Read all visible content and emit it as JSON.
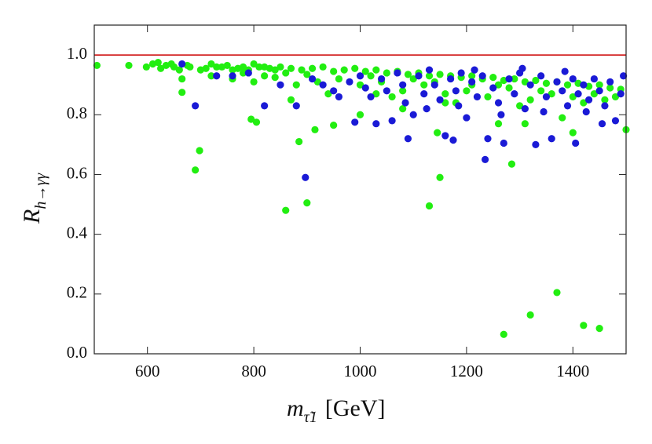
{
  "chart_data": {
    "type": "scatter",
    "xlabel": "m",
    "xlabel_sub": "τ̃1",
    "xlabel_unit": "[GeV]",
    "ylabel": "R",
    "ylabel_sub": "h→γγ",
    "xlim": [
      500,
      1500
    ],
    "ylim": [
      0,
      1.1
    ],
    "xticks": [
      600,
      800,
      1000,
      1200,
      1400
    ],
    "yticks": [
      {
        "value": 0,
        "label": "0.0"
      },
      0.2,
      0.4,
      0.6,
      0.8,
      {
        "value": 1,
        "label": "1.0"
      }
    ],
    "hline": 1,
    "hline_color": "#cc0000",
    "series": [
      {
        "color": "#22ee11",
        "x": [
          505,
          565,
          598,
          610,
          620,
          635,
          645,
          660,
          665,
          665,
          680,
          690,
          698,
          700,
          720,
          740,
          760,
          780,
          795,
          805,
          800,
          820,
          840,
          860,
          870,
          885,
          900,
          915,
          950,
          1000,
          1030,
          1080,
          1130,
          1145,
          1150,
          1160,
          1210,
          1260,
          1270,
          1285,
          1310,
          1320,
          1370,
          1420,
          1450,
          1500,
          1400,
          1380,
          625,
          650,
          675,
          710,
          730,
          750,
          770,
          790,
          810,
          830,
          850,
          870,
          890,
          910,
          930,
          950,
          970,
          990,
          1010,
          1030,
          1050,
          1070,
          1090,
          1110,
          1130,
          1150,
          1170,
          1190,
          1210,
          1230,
          1250,
          1270,
          1290,
          1310,
          1330,
          1350,
          1370,
          1390,
          1410,
          1430,
          1450,
          1470,
          1490,
          720,
          760,
          800,
          840,
          880,
          920,
          960,
          1000,
          1040,
          1080,
          1120,
          1160,
          1200,
          1240,
          1280,
          1320,
          1360,
          1400,
          1440,
          1480,
          940,
          1060,
          1180,
          1300,
          1420,
          780,
          820,
          860,
          900,
          1020,
          1100,
          1140,
          1260,
          1340,
          1460
        ],
        "values": [
          0.965,
          0.965,
          0.96,
          0.97,
          0.975,
          0.965,
          0.97,
          0.95,
          0.875,
          0.92,
          0.96,
          0.615,
          0.68,
          0.95,
          0.97,
          0.96,
          0.95,
          0.96,
          0.785,
          0.775,
          0.97,
          0.96,
          0.95,
          0.48,
          0.85,
          0.71,
          0.505,
          0.75,
          0.765,
          0.8,
          0.87,
          0.82,
          0.495,
          0.74,
          0.59,
          0.84,
          0.9,
          0.77,
          0.065,
          0.635,
          0.77,
          0.13,
          0.205,
          0.095,
          0.085,
          0.75,
          0.74,
          0.79,
          0.955,
          0.96,
          0.965,
          0.955,
          0.96,
          0.965,
          0.955,
          0.95,
          0.96,
          0.955,
          0.96,
          0.955,
          0.95,
          0.955,
          0.96,
          0.945,
          0.95,
          0.955,
          0.945,
          0.95,
          0.94,
          0.945,
          0.935,
          0.94,
          0.93,
          0.935,
          0.93,
          0.925,
          0.93,
          0.92,
          0.925,
          0.915,
          0.92,
          0.91,
          0.915,
          0.905,
          0.91,
          0.9,
          0.905,
          0.895,
          0.9,
          0.89,
          0.885,
          0.93,
          0.92,
          0.91,
          0.925,
          0.9,
          0.91,
          0.92,
          0.9,
          0.91,
          0.88,
          0.9,
          0.87,
          0.88,
          0.86,
          0.89,
          0.85,
          0.87,
          0.86,
          0.87,
          0.86,
          0.87,
          0.86,
          0.84,
          0.83,
          0.84,
          0.94,
          0.93,
          0.94,
          0.935,
          0.93,
          0.92,
          0.91,
          0.9,
          0.88,
          0.85
        ]
      },
      {
        "color": "#1a1ad6",
        "x": [
          730,
          760,
          790,
          820,
          850,
          880,
          897,
          910,
          930,
          950,
          960,
          980,
          990,
          1000,
          1010,
          1020,
          1030,
          1040,
          1050,
          1060,
          1070,
          1080,
          1090,
          1100,
          1110,
          1120,
          1130,
          1140,
          1150,
          1160,
          1170,
          1175,
          1180,
          1190,
          1200,
          1210,
          1220,
          1230,
          1235,
          1240,
          1250,
          1260,
          1270,
          1280,
          1290,
          1300,
          1310,
          1320,
          1330,
          1340,
          1350,
          1360,
          1370,
          1380,
          1390,
          1400,
          1405,
          1410,
          1420,
          1430,
          1440,
          1450,
          1455,
          1460,
          1470,
          1480,
          1490,
          1495,
          665,
          690,
          1125,
          1265,
          1345,
          1425,
          1185,
          1085,
          1215,
          1305,
          1385
        ],
        "values": [
          0.93,
          0.93,
          0.94,
          0.83,
          0.9,
          0.83,
          0.59,
          0.92,
          0.9,
          0.88,
          0.86,
          0.91,
          0.775,
          0.93,
          0.89,
          0.86,
          0.77,
          0.92,
          0.88,
          0.78,
          0.94,
          0.9,
          0.72,
          0.8,
          0.93,
          0.87,
          0.95,
          0.9,
          0.85,
          0.73,
          0.92,
          0.715,
          0.88,
          0.94,
          0.79,
          0.91,
          0.86,
          0.93,
          0.65,
          0.72,
          0.89,
          0.84,
          0.705,
          0.92,
          0.87,
          0.94,
          0.82,
          0.9,
          0.7,
          0.93,
          0.86,
          0.72,
          0.91,
          0.88,
          0.83,
          0.92,
          0.705,
          0.87,
          0.9,
          0.85,
          0.92,
          0.88,
          0.77,
          0.83,
          0.91,
          0.78,
          0.87,
          0.93,
          0.97,
          0.83,
          0.82,
          0.8,
          0.81,
          0.81,
          0.83,
          0.84,
          0.95,
          0.955,
          0.945
        ]
      }
    ]
  }
}
